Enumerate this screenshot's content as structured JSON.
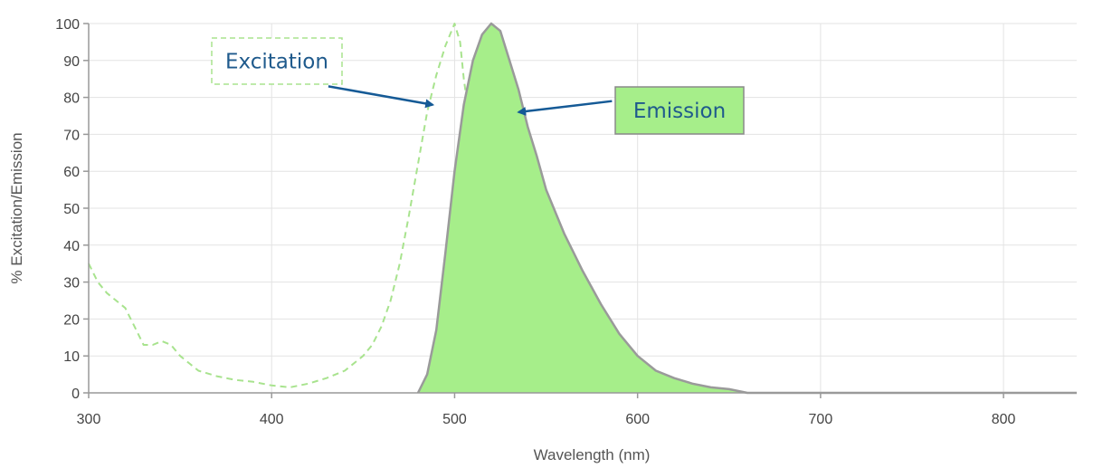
{
  "chart_data": {
    "type": "area",
    "xlabel": "Wavelength (nm)",
    "ylabel": "% Excitation/Emission",
    "xlim": [
      300,
      840
    ],
    "ylim": [
      0,
      100
    ],
    "x_ticks": [
      300,
      400,
      500,
      600,
      700,
      800
    ],
    "y_ticks": [
      0,
      10,
      20,
      30,
      40,
      50,
      60,
      70,
      80,
      90,
      100
    ],
    "grid": true,
    "colors": {
      "excitation": "#a8e38e",
      "emission_fill": "#a6ee8a",
      "emission_stroke": "#9a9a9a",
      "annotation_text": "#1f5a8c",
      "arrow": "#155a96",
      "grid": "#e3e3e3",
      "axis": "#999999"
    },
    "series": [
      {
        "key": "excitation",
        "style": "dashed",
        "points": [
          [
            300,
            35
          ],
          [
            305,
            30
          ],
          [
            310,
            27
          ],
          [
            320,
            23
          ],
          [
            325,
            18
          ],
          [
            330,
            13
          ],
          [
            335,
            13
          ],
          [
            340,
            14
          ],
          [
            345,
            13
          ],
          [
            350,
            10
          ],
          [
            355,
            8
          ],
          [
            360,
            6
          ],
          [
            370,
            4.5
          ],
          [
            380,
            3.5
          ],
          [
            390,
            3
          ],
          [
            400,
            2
          ],
          [
            410,
            1.5
          ],
          [
            420,
            2.5
          ],
          [
            430,
            4
          ],
          [
            440,
            6
          ],
          [
            450,
            10
          ],
          [
            455,
            13
          ],
          [
            460,
            18
          ],
          [
            465,
            25
          ],
          [
            470,
            35
          ],
          [
            475,
            48
          ],
          [
            480,
            62
          ],
          [
            485,
            76
          ],
          [
            490,
            86
          ],
          [
            495,
            94
          ],
          [
            500,
            100
          ],
          [
            503,
            95
          ],
          [
            505,
            85
          ],
          [
            507,
            78
          ]
        ]
      },
      {
        "key": "emission",
        "style": "filled",
        "points": [
          [
            480,
            0
          ],
          [
            485,
            5
          ],
          [
            490,
            17
          ],
          [
            495,
            38
          ],
          [
            500,
            60
          ],
          [
            505,
            78
          ],
          [
            510,
            90
          ],
          [
            515,
            97
          ],
          [
            520,
            100
          ],
          [
            525,
            98
          ],
          [
            530,
            90
          ],
          [
            535,
            82
          ],
          [
            540,
            72
          ],
          [
            545,
            64
          ],
          [
            550,
            55
          ],
          [
            560,
            43
          ],
          [
            570,
            33
          ],
          [
            580,
            24
          ],
          [
            590,
            16
          ],
          [
            600,
            10
          ],
          [
            610,
            6
          ],
          [
            620,
            4
          ],
          [
            630,
            2.5
          ],
          [
            640,
            1.5
          ],
          [
            650,
            1
          ],
          [
            660,
            0
          ],
          [
            700,
            0
          ],
          [
            840,
            0
          ]
        ]
      }
    ],
    "annotations": [
      {
        "key": "excitation",
        "text": "Excitation",
        "box": "dashed",
        "arrow_from": [
          431,
          83
        ],
        "arrow_to": [
          488,
          78
        ]
      },
      {
        "key": "emission",
        "text": "Emission",
        "box": "filled",
        "arrow_from": [
          586,
          79
        ],
        "arrow_to": [
          535,
          76
        ]
      }
    ]
  }
}
